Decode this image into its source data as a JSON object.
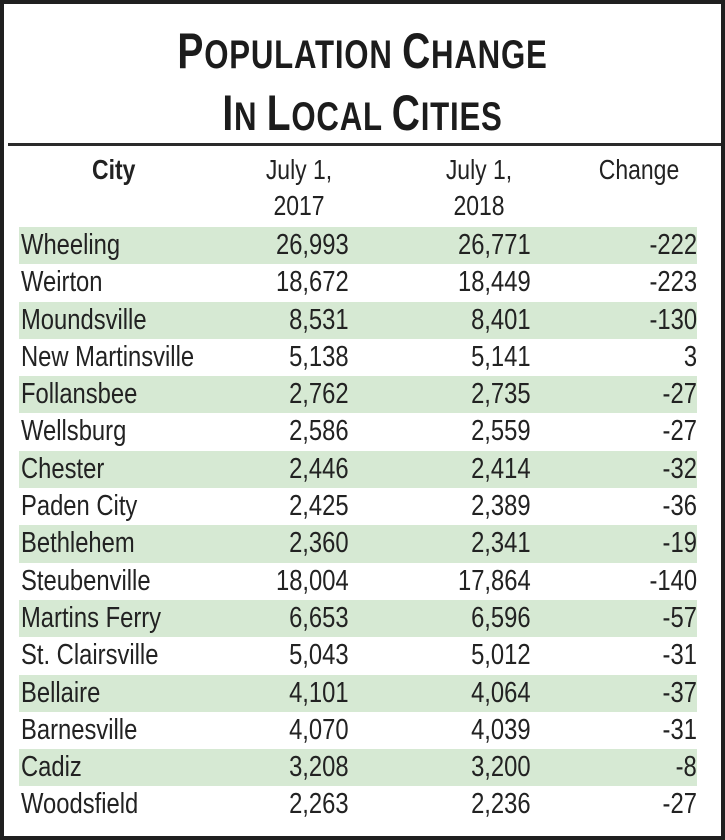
{
  "title": {
    "line1": "Population Change",
    "line2": "In Local Cities"
  },
  "headers": {
    "city": "City",
    "col2017_line1": "July 1,",
    "col2017_line2": "2017",
    "col2018_line1": "July 1,",
    "col2018_line2": "2018",
    "change": "Change"
  },
  "colors": {
    "shade": "#d6e9d3",
    "border": "#1f1f1f",
    "text": "#222222"
  },
  "rows": [
    {
      "city": "Wheeling",
      "y2017": "26,993",
      "y2018": "26,771",
      "change": "-222"
    },
    {
      "city": "Weirton",
      "y2017": "18,672",
      "y2018": "18,449",
      "change": "-223"
    },
    {
      "city": "Moundsville",
      "y2017": "8,531",
      "y2018": "8,401",
      "change": "-130"
    },
    {
      "city": "New Martinsville",
      "y2017": "5,138",
      "y2018": "5,141",
      "change": "3"
    },
    {
      "city": "Follansbee",
      "y2017": "2,762",
      "y2018": "2,735",
      "change": "-27"
    },
    {
      "city": "Wellsburg",
      "y2017": "2,586",
      "y2018": "2,559",
      "change": "-27"
    },
    {
      "city": "Chester",
      "y2017": "2,446",
      "y2018": "2,414",
      "change": "-32"
    },
    {
      "city": "Paden City",
      "y2017": "2,425",
      "y2018": "2,389",
      "change": "-36"
    },
    {
      "city": "Bethlehem",
      "y2017": "2,360",
      "y2018": "2,341",
      "change": "-19"
    },
    {
      "city": "Steubenville",
      "y2017": "18,004",
      "y2018": "17,864",
      "change": "-140"
    },
    {
      "city": "Martins Ferry",
      "y2017": "6,653",
      "y2018": "6,596",
      "change": "-57"
    },
    {
      "city": "St. Clairsville",
      "y2017": "5,043",
      "y2018": "5,012",
      "change": "-31"
    },
    {
      "city": "Bellaire",
      "y2017": "4,101",
      "y2018": "4,064",
      "change": "-37"
    },
    {
      "city": "Barnesville",
      "y2017": "4,070",
      "y2018": "4,039",
      "change": "-31"
    },
    {
      "city": "Cadiz",
      "y2017": "3,208",
      "y2018": "3,200",
      "change": "-8"
    },
    {
      "city": "Woodsfield",
      "y2017": "2,263",
      "y2018": "2,236",
      "change": "-27"
    }
  ],
  "chart_data": {
    "type": "table",
    "title": "Population Change In Local Cities",
    "columns": [
      "City",
      "July 1, 2017",
      "July 1, 2018",
      "Change"
    ],
    "categories": [
      "Wheeling",
      "Weirton",
      "Moundsville",
      "New Martinsville",
      "Follansbee",
      "Wellsburg",
      "Chester",
      "Paden City",
      "Bethlehem",
      "Steubenville",
      "Martins Ferry",
      "St. Clairsville",
      "Bellaire",
      "Barnesville",
      "Cadiz",
      "Woodsfield"
    ],
    "series": [
      {
        "name": "July 1, 2017",
        "values": [
          26993,
          18672,
          8531,
          5138,
          2762,
          2586,
          2446,
          2425,
          2360,
          18004,
          6653,
          5043,
          4101,
          4070,
          3208,
          2263
        ]
      },
      {
        "name": "July 1, 2018",
        "values": [
          26771,
          18449,
          8401,
          5141,
          2735,
          2559,
          2414,
          2389,
          2341,
          17864,
          6596,
          5012,
          4064,
          4039,
          3200,
          2236
        ]
      },
      {
        "name": "Change",
        "values": [
          -222,
          -223,
          -130,
          3,
          -27,
          -27,
          -32,
          -36,
          -19,
          -140,
          -57,
          -31,
          -37,
          -31,
          -8,
          -27
        ]
      }
    ],
    "row_shading": "alternating light green (#d6e9d3) on odd rows starting with first"
  }
}
